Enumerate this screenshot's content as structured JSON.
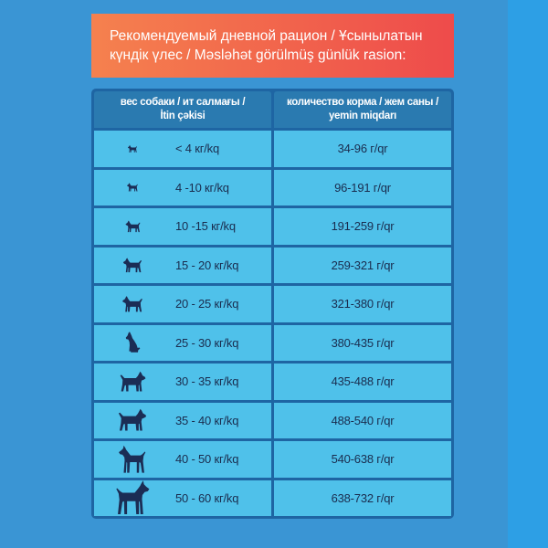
{
  "header": {
    "line1": "Рекомендуемый дневной рацион / Ұсынылатын",
    "line2": "күндік үлес / Məsləhət görülmüş günlük rasion:"
  },
  "table": {
    "columns": [
      {
        "line1": "вес собаки / ит салмағы /",
        "line2": "İtin çəkisi"
      },
      {
        "line1": "количество корма / жем саны /",
        "line2": "yemin miqdarı"
      }
    ],
    "rows": [
      {
        "icon": "standing-dog-icon",
        "weight": "< 4 кг/kq",
        "amount": "34-96 г/qr"
      },
      {
        "icon": "standing-dog-icon",
        "weight": "4 -10 кг/kq",
        "amount": "96-191 г/qr"
      },
      {
        "icon": "standing-dog-icon",
        "weight": "10 -15 кг/kq",
        "amount": "191-259 г/qr"
      },
      {
        "icon": "standing-dog-icon",
        "weight": "15 - 20 кг/kq",
        "amount": "259-321 г/qr"
      },
      {
        "icon": "standing-dog-icon",
        "weight": "20 - 25 кг/kq",
        "amount": "321-380 г/qr"
      },
      {
        "icon": "sitting-dog-icon",
        "weight": "25 - 30 кг/kq",
        "amount": "380-435 г/qr"
      },
      {
        "icon": "standing-dog-icon",
        "weight": "30 - 35 кг/kq",
        "amount": "435-488 г/qr"
      },
      {
        "icon": "standing-dog-icon",
        "weight": "35 - 40 кг/kq",
        "amount": "488-540 г/qr"
      },
      {
        "icon": "large-dog-icon",
        "weight": "40 - 50 кг/kq",
        "amount": "540-638 г/qr"
      },
      {
        "icon": "large-dog-icon",
        "weight": "50 - 60 кг/kq",
        "amount": "638-732 г/qr"
      }
    ]
  },
  "colors": {
    "background": "#3a95d4",
    "background_strip": "#2d9fe5",
    "banner_start": "#f5814e",
    "banner_end": "#ee4b4b",
    "table_frame": "#1e65a3",
    "header_cell": "#2a7ab0",
    "body_cell": "#4fc1ea",
    "body_text": "#1a2c4e",
    "icon": "#1b2d55"
  }
}
